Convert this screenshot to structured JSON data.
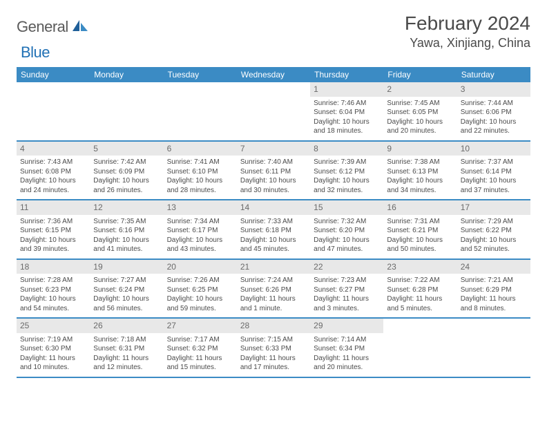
{
  "brand": {
    "part1": "General",
    "part2": "Blue"
  },
  "title": "February 2024",
  "location": "Yawa, Xinjiang, China",
  "colors": {
    "header_bg": "#3b8bc4",
    "header_text": "#ffffff",
    "daynum_bg": "#e8e8e8",
    "daynum_text": "#6a6a6a",
    "body_text": "#4a4a4a",
    "rule": "#3b8bc4",
    "brand_gray": "#5a5a5a",
    "brand_blue": "#2171b5"
  },
  "dayNames": [
    "Sunday",
    "Monday",
    "Tuesday",
    "Wednesday",
    "Thursday",
    "Friday",
    "Saturday"
  ],
  "weeks": [
    [
      null,
      null,
      null,
      null,
      {
        "num": "1",
        "sunrise": "Sunrise: 7:46 AM",
        "sunset": "Sunset: 6:04 PM",
        "day1": "Daylight: 10 hours",
        "day2": "and 18 minutes."
      },
      {
        "num": "2",
        "sunrise": "Sunrise: 7:45 AM",
        "sunset": "Sunset: 6:05 PM",
        "day1": "Daylight: 10 hours",
        "day2": "and 20 minutes."
      },
      {
        "num": "3",
        "sunrise": "Sunrise: 7:44 AM",
        "sunset": "Sunset: 6:06 PM",
        "day1": "Daylight: 10 hours",
        "day2": "and 22 minutes."
      }
    ],
    [
      {
        "num": "4",
        "sunrise": "Sunrise: 7:43 AM",
        "sunset": "Sunset: 6:08 PM",
        "day1": "Daylight: 10 hours",
        "day2": "and 24 minutes."
      },
      {
        "num": "5",
        "sunrise": "Sunrise: 7:42 AM",
        "sunset": "Sunset: 6:09 PM",
        "day1": "Daylight: 10 hours",
        "day2": "and 26 minutes."
      },
      {
        "num": "6",
        "sunrise": "Sunrise: 7:41 AM",
        "sunset": "Sunset: 6:10 PM",
        "day1": "Daylight: 10 hours",
        "day2": "and 28 minutes."
      },
      {
        "num": "7",
        "sunrise": "Sunrise: 7:40 AM",
        "sunset": "Sunset: 6:11 PM",
        "day1": "Daylight: 10 hours",
        "day2": "and 30 minutes."
      },
      {
        "num": "8",
        "sunrise": "Sunrise: 7:39 AM",
        "sunset": "Sunset: 6:12 PM",
        "day1": "Daylight: 10 hours",
        "day2": "and 32 minutes."
      },
      {
        "num": "9",
        "sunrise": "Sunrise: 7:38 AM",
        "sunset": "Sunset: 6:13 PM",
        "day1": "Daylight: 10 hours",
        "day2": "and 34 minutes."
      },
      {
        "num": "10",
        "sunrise": "Sunrise: 7:37 AM",
        "sunset": "Sunset: 6:14 PM",
        "day1": "Daylight: 10 hours",
        "day2": "and 37 minutes."
      }
    ],
    [
      {
        "num": "11",
        "sunrise": "Sunrise: 7:36 AM",
        "sunset": "Sunset: 6:15 PM",
        "day1": "Daylight: 10 hours",
        "day2": "and 39 minutes."
      },
      {
        "num": "12",
        "sunrise": "Sunrise: 7:35 AM",
        "sunset": "Sunset: 6:16 PM",
        "day1": "Daylight: 10 hours",
        "day2": "and 41 minutes."
      },
      {
        "num": "13",
        "sunrise": "Sunrise: 7:34 AM",
        "sunset": "Sunset: 6:17 PM",
        "day1": "Daylight: 10 hours",
        "day2": "and 43 minutes."
      },
      {
        "num": "14",
        "sunrise": "Sunrise: 7:33 AM",
        "sunset": "Sunset: 6:18 PM",
        "day1": "Daylight: 10 hours",
        "day2": "and 45 minutes."
      },
      {
        "num": "15",
        "sunrise": "Sunrise: 7:32 AM",
        "sunset": "Sunset: 6:20 PM",
        "day1": "Daylight: 10 hours",
        "day2": "and 47 minutes."
      },
      {
        "num": "16",
        "sunrise": "Sunrise: 7:31 AM",
        "sunset": "Sunset: 6:21 PM",
        "day1": "Daylight: 10 hours",
        "day2": "and 50 minutes."
      },
      {
        "num": "17",
        "sunrise": "Sunrise: 7:29 AM",
        "sunset": "Sunset: 6:22 PM",
        "day1": "Daylight: 10 hours",
        "day2": "and 52 minutes."
      }
    ],
    [
      {
        "num": "18",
        "sunrise": "Sunrise: 7:28 AM",
        "sunset": "Sunset: 6:23 PM",
        "day1": "Daylight: 10 hours",
        "day2": "and 54 minutes."
      },
      {
        "num": "19",
        "sunrise": "Sunrise: 7:27 AM",
        "sunset": "Sunset: 6:24 PM",
        "day1": "Daylight: 10 hours",
        "day2": "and 56 minutes."
      },
      {
        "num": "20",
        "sunrise": "Sunrise: 7:26 AM",
        "sunset": "Sunset: 6:25 PM",
        "day1": "Daylight: 10 hours",
        "day2": "and 59 minutes."
      },
      {
        "num": "21",
        "sunrise": "Sunrise: 7:24 AM",
        "sunset": "Sunset: 6:26 PM",
        "day1": "Daylight: 11 hours",
        "day2": "and 1 minute."
      },
      {
        "num": "22",
        "sunrise": "Sunrise: 7:23 AM",
        "sunset": "Sunset: 6:27 PM",
        "day1": "Daylight: 11 hours",
        "day2": "and 3 minutes."
      },
      {
        "num": "23",
        "sunrise": "Sunrise: 7:22 AM",
        "sunset": "Sunset: 6:28 PM",
        "day1": "Daylight: 11 hours",
        "day2": "and 5 minutes."
      },
      {
        "num": "24",
        "sunrise": "Sunrise: 7:21 AM",
        "sunset": "Sunset: 6:29 PM",
        "day1": "Daylight: 11 hours",
        "day2": "and 8 minutes."
      }
    ],
    [
      {
        "num": "25",
        "sunrise": "Sunrise: 7:19 AM",
        "sunset": "Sunset: 6:30 PM",
        "day1": "Daylight: 11 hours",
        "day2": "and 10 minutes."
      },
      {
        "num": "26",
        "sunrise": "Sunrise: 7:18 AM",
        "sunset": "Sunset: 6:31 PM",
        "day1": "Daylight: 11 hours",
        "day2": "and 12 minutes."
      },
      {
        "num": "27",
        "sunrise": "Sunrise: 7:17 AM",
        "sunset": "Sunset: 6:32 PM",
        "day1": "Daylight: 11 hours",
        "day2": "and 15 minutes."
      },
      {
        "num": "28",
        "sunrise": "Sunrise: 7:15 AM",
        "sunset": "Sunset: 6:33 PM",
        "day1": "Daylight: 11 hours",
        "day2": "and 17 minutes."
      },
      {
        "num": "29",
        "sunrise": "Sunrise: 7:14 AM",
        "sunset": "Sunset: 6:34 PM",
        "day1": "Daylight: 11 hours",
        "day2": "and 20 minutes."
      },
      null,
      null
    ]
  ]
}
